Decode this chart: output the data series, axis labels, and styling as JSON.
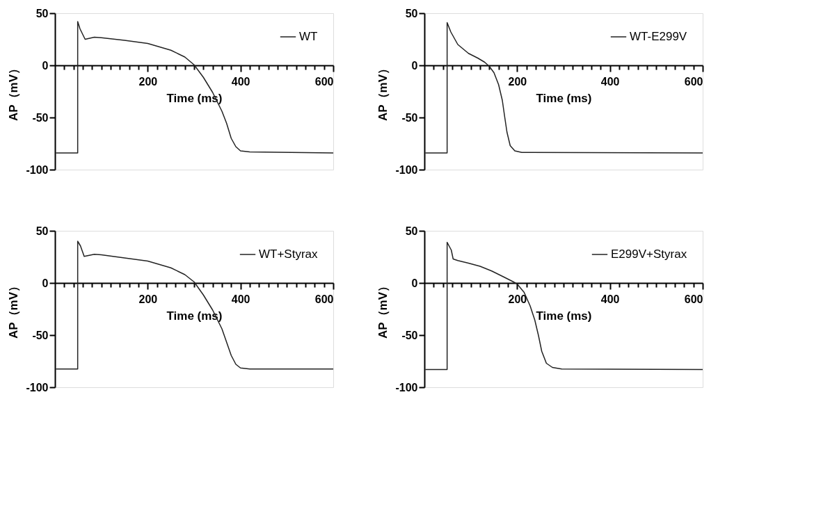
{
  "chart_data": [
    {
      "type": "line",
      "xlabel": "Time (ms)",
      "ylabel": "AP（mV）",
      "xlim": [
        0,
        600
      ],
      "ylim": [
        -100,
        50
      ],
      "yticks": [
        -100,
        -50,
        0,
        50
      ],
      "xticks": [
        {
          "value": 20,
          "label": null
        },
        {
          "value": 40,
          "label": null
        },
        {
          "value": 60,
          "label": null
        },
        {
          "value": 80,
          "label": null
        },
        {
          "value": 100,
          "label": null
        },
        {
          "value": 120,
          "label": null
        },
        {
          "value": 140,
          "label": null
        },
        {
          "value": 160,
          "label": null
        },
        {
          "value": 180,
          "label": null
        },
        200,
        {
          "value": 220,
          "label": null
        },
        {
          "value": 240,
          "label": null
        },
        {
          "value": 260,
          "label": null
        },
        {
          "value": 280,
          "label": null
        },
        {
          "value": 300,
          "label": null
        },
        {
          "value": 320,
          "label": null
        },
        {
          "value": 340,
          "label": null
        },
        {
          "value": 360,
          "label": null
        },
        {
          "value": 380,
          "label": null
        },
        400,
        {
          "value": 420,
          "label": null
        },
        {
          "value": 440,
          "label": null
        },
        {
          "value": 460,
          "label": null
        },
        {
          "value": 480,
          "label": null
        },
        {
          "value": 500,
          "label": null
        },
        {
          "value": 520,
          "label": null
        },
        {
          "value": 540,
          "label": null
        },
        {
          "value": 560,
          "label": null
        },
        {
          "value": 580,
          "label": null
        },
        600
      ],
      "grid": false,
      "legend": "top right",
      "series": [
        {
          "name": "WT",
          "color": "#222222",
          "x": [
            2,
            49,
            49,
            54,
            65,
            85,
            100,
            150,
            200,
            250,
            280,
            300,
            320,
            340,
            360,
            370,
            380,
            390,
            400,
            420,
            600
          ],
          "values": [
            -84,
            -84,
            42,
            35,
            25,
            27,
            26.5,
            24,
            21,
            14.5,
            8,
            0.5,
            -11.5,
            -26,
            -44,
            -55.5,
            -70,
            -78,
            -82,
            -83,
            -84
          ]
        }
      ]
    },
    {
      "type": "line",
      "xlabel": "Time (ms)",
      "ylabel": "AP（mV）",
      "xlim": [
        0,
        600
      ],
      "ylim": [
        -100,
        50
      ],
      "yticks": [
        -100,
        -50,
        0,
        50
      ],
      "xticks": [
        {
          "value": 20,
          "label": null
        },
        {
          "value": 40,
          "label": null
        },
        {
          "value": 60,
          "label": null
        },
        {
          "value": 80,
          "label": null
        },
        {
          "value": 100,
          "label": null
        },
        {
          "value": 120,
          "label": null
        },
        {
          "value": 140,
          "label": null
        },
        {
          "value": 160,
          "label": null
        },
        {
          "value": 180,
          "label": null
        },
        200,
        {
          "value": 220,
          "label": null
        },
        {
          "value": 240,
          "label": null
        },
        {
          "value": 260,
          "label": null
        },
        {
          "value": 280,
          "label": null
        },
        {
          "value": 300,
          "label": null
        },
        {
          "value": 320,
          "label": null
        },
        {
          "value": 340,
          "label": null
        },
        {
          "value": 360,
          "label": null
        },
        {
          "value": 380,
          "label": null
        },
        400,
        {
          "value": 420,
          "label": null
        },
        {
          "value": 440,
          "label": null
        },
        {
          "value": 460,
          "label": null
        },
        {
          "value": 480,
          "label": null
        },
        {
          "value": 500,
          "label": null
        },
        {
          "value": 520,
          "label": null
        },
        {
          "value": 540,
          "label": null
        },
        {
          "value": 560,
          "label": null
        },
        {
          "value": 580,
          "label": null
        },
        600
      ],
      "grid": false,
      "legend": "top right",
      "series": [
        {
          "name": "WT-E299V",
          "color": "#222222",
          "x": [
            2,
            49,
            49,
            57,
            72,
            95,
            115,
            130,
            140,
            150,
            160,
            168,
            173,
            178,
            185,
            195,
            210,
            600
          ],
          "values": [
            -84,
            -84,
            41,
            32,
            20,
            11.5,
            7,
            3,
            -1,
            -7,
            -18.5,
            -33.5,
            -49,
            -64,
            -77,
            -82,
            -83.5,
            -84
          ]
        }
      ]
    },
    {
      "type": "line",
      "xlabel": "Time (ms)",
      "ylabel": "AP（mV）",
      "xlim": [
        0,
        600
      ],
      "ylim": [
        -100,
        50
      ],
      "yticks": [
        -100,
        -50,
        0,
        50
      ],
      "xticks": [
        {
          "value": 20,
          "label": null
        },
        {
          "value": 40,
          "label": null
        },
        {
          "value": 60,
          "label": null
        },
        {
          "value": 80,
          "label": null
        },
        {
          "value": 100,
          "label": null
        },
        {
          "value": 120,
          "label": null
        },
        {
          "value": 140,
          "label": null
        },
        {
          "value": 160,
          "label": null
        },
        {
          "value": 180,
          "label": null
        },
        200,
        {
          "value": 220,
          "label": null
        },
        {
          "value": 240,
          "label": null
        },
        {
          "value": 260,
          "label": null
        },
        {
          "value": 280,
          "label": null
        },
        {
          "value": 300,
          "label": null
        },
        {
          "value": 320,
          "label": null
        },
        {
          "value": 340,
          "label": null
        },
        {
          "value": 360,
          "label": null
        },
        {
          "value": 380,
          "label": null
        },
        400,
        {
          "value": 420,
          "label": null
        },
        {
          "value": 440,
          "label": null
        },
        {
          "value": 460,
          "label": null
        },
        {
          "value": 480,
          "label": null
        },
        {
          "value": 500,
          "label": null
        },
        {
          "value": 520,
          "label": null
        },
        {
          "value": 540,
          "label": null
        },
        {
          "value": 560,
          "label": null
        },
        {
          "value": 580,
          "label": null
        },
        600
      ],
      "grid": false,
      "legend": "top right",
      "series": [
        {
          "name": "WT+Styrax",
          "color": "#222222",
          "x": [
            2,
            49,
            49,
            55,
            63,
            85,
            100,
            150,
            200,
            250,
            280,
            300,
            320,
            340,
            360,
            380,
            390,
            400,
            420,
            600
          ],
          "values": [
            -82.5,
            -82.5,
            40,
            35.5,
            25.5,
            27.5,
            27,
            24,
            21,
            14.5,
            8,
            1,
            -11.5,
            -26,
            -44,
            -69.5,
            -78,
            -81.5,
            -82.5,
            -82.5
          ]
        }
      ]
    },
    {
      "type": "line",
      "xlabel": "Time (ms)",
      "ylabel": "AP（mV）",
      "xlim": [
        0,
        600
      ],
      "ylim": [
        -100,
        50
      ],
      "yticks": [
        -100,
        -50,
        0,
        50
      ],
      "xticks": [
        {
          "value": 20,
          "label": null
        },
        {
          "value": 40,
          "label": null
        },
        {
          "value": 60,
          "label": null
        },
        {
          "value": 80,
          "label": null
        },
        {
          "value": 100,
          "label": null
        },
        {
          "value": 120,
          "label": null
        },
        {
          "value": 140,
          "label": null
        },
        {
          "value": 160,
          "label": null
        },
        {
          "value": 180,
          "label": null
        },
        200,
        {
          "value": 220,
          "label": null
        },
        {
          "value": 240,
          "label": null
        },
        {
          "value": 260,
          "label": null
        },
        {
          "value": 280,
          "label": null
        },
        {
          "value": 300,
          "label": null
        },
        {
          "value": 320,
          "label": null
        },
        {
          "value": 340,
          "label": null
        },
        {
          "value": 360,
          "label": null
        },
        {
          "value": 380,
          "label": null
        },
        400,
        {
          "value": 420,
          "label": null
        },
        {
          "value": 440,
          "label": null
        },
        {
          "value": 460,
          "label": null
        },
        {
          "value": 480,
          "label": null
        },
        {
          "value": 500,
          "label": null
        },
        {
          "value": 520,
          "label": null
        },
        {
          "value": 540,
          "label": null
        },
        {
          "value": 560,
          "label": null
        },
        {
          "value": 580,
          "label": null
        },
        600
      ],
      "grid": false,
      "legend": "top right",
      "series": [
        {
          "name": "E299V+Styrax",
          "color": "#222222",
          "x": [
            2,
            49,
            49,
            58,
            62,
            72,
            95,
            120,
            145,
            170,
            190,
            200,
            215,
            228,
            238,
            246,
            253,
            263,
            276,
            296,
            600
          ],
          "values": [
            -83,
            -83,
            39,
            31.5,
            23,
            21.5,
            19,
            16,
            11.5,
            6,
            1.5,
            -1,
            -9,
            -22,
            -35.5,
            -50.5,
            -65.5,
            -77,
            -81,
            -82.5,
            -83
          ]
        }
      ]
    }
  ]
}
